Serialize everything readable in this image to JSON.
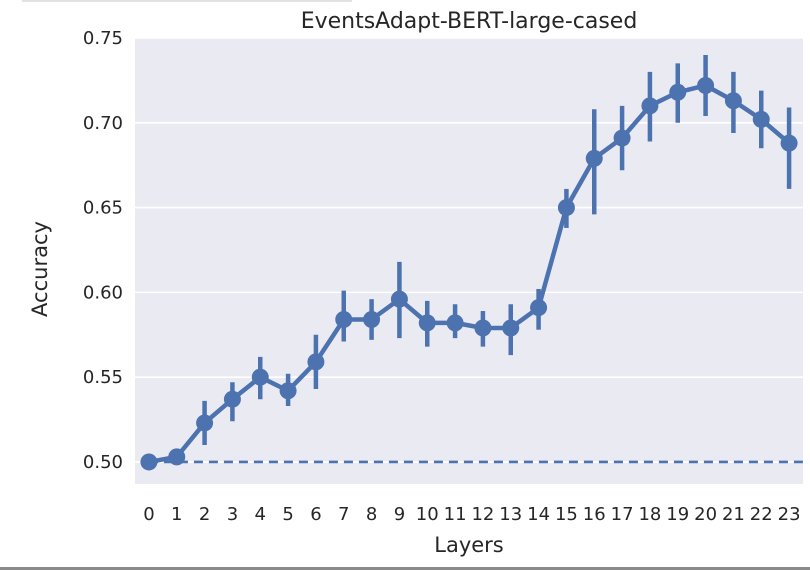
{
  "chart_data": {
    "type": "line",
    "title": "EventsAdapt-BERT-large-cased",
    "xlabel": "Layers",
    "ylabel": "Accuracy",
    "categories": [
      "0",
      "1",
      "2",
      "3",
      "4",
      "5",
      "6",
      "7",
      "8",
      "9",
      "10",
      "11",
      "12",
      "13",
      "14",
      "15",
      "16",
      "17",
      "18",
      "19",
      "20",
      "21",
      "22",
      "23"
    ],
    "series": [
      {
        "values": [
          0.5,
          0.503,
          0.523,
          0.537,
          0.55,
          0.542,
          0.559,
          0.584,
          0.584,
          0.596,
          0.582,
          0.582,
          0.579,
          0.579,
          0.591,
          0.65,
          0.679,
          0.691,
          0.71,
          0.718,
          0.722,
          0.713,
          0.702,
          0.688
        ],
        "error_low": [
          0.498,
          0.501,
          0.51,
          0.524,
          0.537,
          0.533,
          0.543,
          0.571,
          0.572,
          0.573,
          0.568,
          0.573,
          0.568,
          0.563,
          0.578,
          0.638,
          0.646,
          0.672,
          0.689,
          0.7,
          0.704,
          0.694,
          0.685,
          0.661
        ],
        "error_high": [
          0.502,
          0.505,
          0.536,
          0.547,
          0.562,
          0.552,
          0.575,
          0.601,
          0.596,
          0.618,
          0.595,
          0.593,
          0.589,
          0.593,
          0.602,
          0.661,
          0.708,
          0.71,
          0.73,
          0.735,
          0.74,
          0.73,
          0.719,
          0.709
        ],
        "color": "#4c72b0"
      }
    ],
    "baseline": {
      "value": 0.5,
      "style": "dashed",
      "color": "#4c72b0"
    },
    "ylim": [
      0.487,
      0.75
    ],
    "yticks": [
      "0.50",
      "0.55",
      "0.60",
      "0.65",
      "0.70",
      "0.75"
    ],
    "grid": "horizontal",
    "background": "#eaeaf2",
    "legend": "none"
  }
}
